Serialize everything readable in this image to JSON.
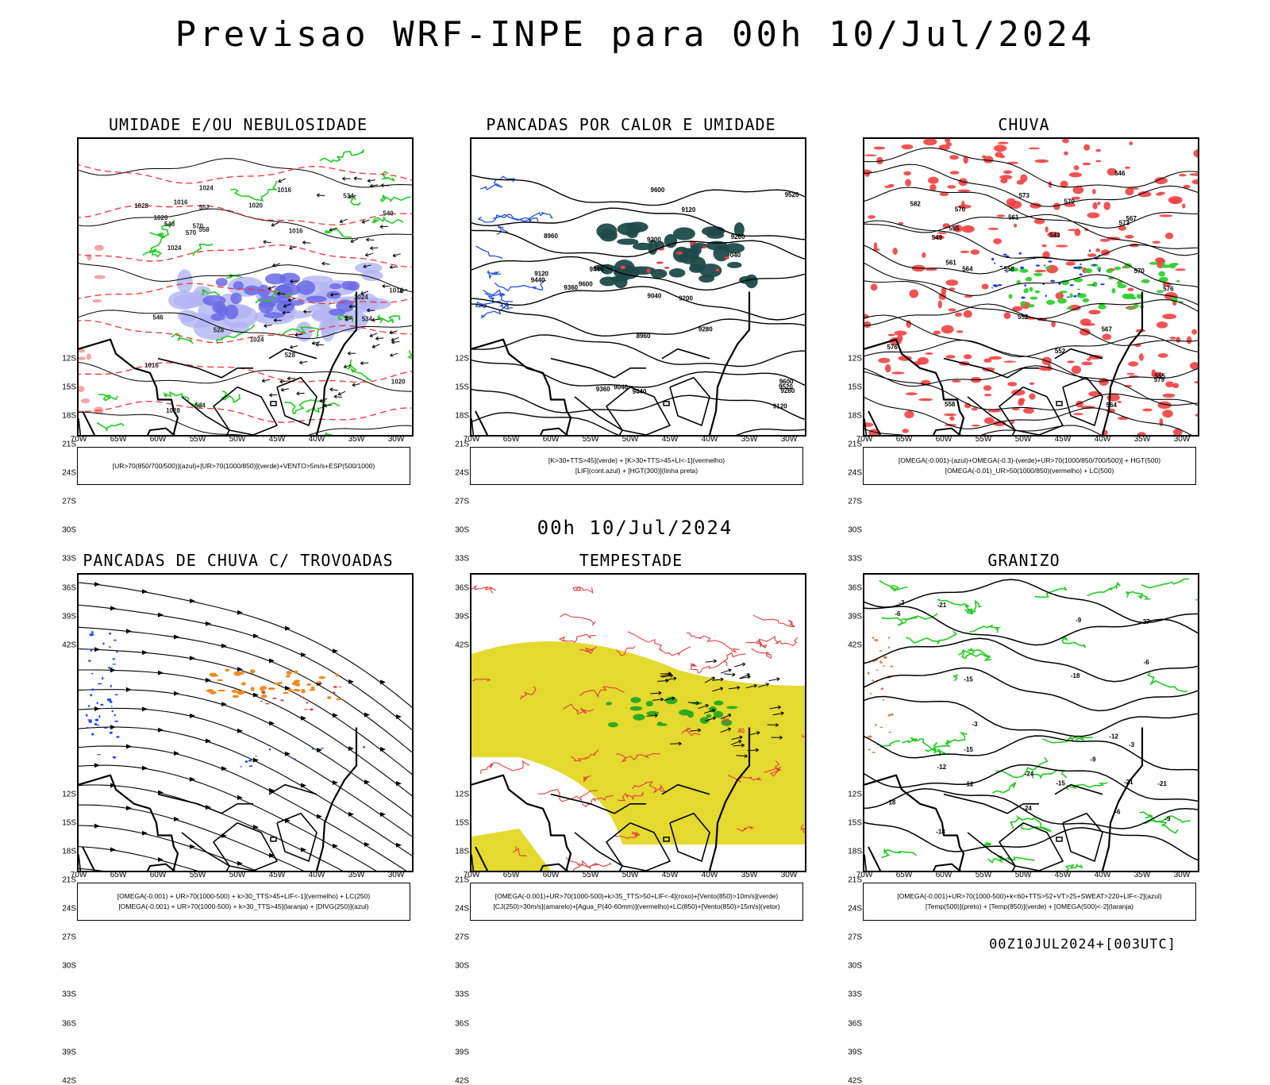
{
  "header": {
    "title": "Previsao WRF-INPE  para 00h 10/Jul/2024",
    "mid_title": "00h 10/Jul/2024",
    "footer": "00Z10JUL2024+[003UTC]"
  },
  "axes": {
    "lat_labels": [
      "12S",
      "15S",
      "18S",
      "21S",
      "24S",
      "27S",
      "30S",
      "33S",
      "36S",
      "39S",
      "42S"
    ],
    "lon_labels": [
      "70W",
      "65W",
      "60W",
      "55W",
      "50W",
      "45W",
      "40W",
      "35W",
      "30W"
    ]
  },
  "panels": [
    {
      "title": "UMIDADE E/OU NEBULOSIDADE",
      "legend": [
        "[UR>70(850/700/500)](azul)+[UR>70(1000/850)](verde)+VENTO>5m/s+ESP(500/1000)"
      ],
      "labels": [
        "1016",
        "1016",
        "1016",
        "1016",
        "1020",
        "1024",
        "1024",
        "1028",
        "1024",
        "1028",
        "1024",
        "1016",
        "1020",
        "570",
        "570",
        "558",
        "546",
        "552",
        "564",
        "540",
        "534",
        "528",
        "540",
        "534",
        "528",
        "1020"
      ]
    },
    {
      "title": "PANCADAS POR CALOR E UMIDADE",
      "legend": [
        "[K>30+TTS>45](verde) + [K>30+TTS>45+LI<-1](vermelho)",
        "[LIF](cont.azul) + [HGT(300)](linha preta)"
      ],
      "labels": [
        "9600",
        "9600",
        "9520",
        "9600",
        "9520",
        "9440",
        "9360",
        "9280",
        "9440",
        "9200",
        "9360",
        "9120",
        "9280",
        "9200",
        "9120",
        "9040",
        "9040",
        "8960",
        "8960",
        "9440",
        "9200",
        "9120",
        "040"
      ]
    },
    {
      "title": "CHUVA",
      "legend": [
        "[OMEGA(-0.001)-(azul)+OMEGA(-0.3)-(verde)+UR>70(1000/850/700/500)] + HGT(500)",
        "[OMEGA(-0.01)_UR>50(1000/850)(vermelho) + LC(500)"
      ],
      "labels": [
        "582",
        "579",
        "576",
        "573",
        "570",
        "567",
        "564",
        "561",
        "558",
        "555",
        "552",
        "549",
        "546",
        "543",
        "564",
        "561",
        "558",
        "555",
        "552",
        "570",
        "567",
        "570",
        "573",
        "576"
      ]
    },
    {
      "title": "PANCADAS DE CHUVA C/ TROVOADAS",
      "legend": [
        "[OMEGA(-0.001) + UR>70(1000-500) + k>30_TTS>45+LIF<-1](vermelho) + LC(250)",
        "[OMEGA(-0.001) + UR>70(1000-500) + k>30_TTS>45](laranja) + [DIVG(250)](azul)"
      ],
      "labels": []
    },
    {
      "title": "TEMPESTADE",
      "legend": [
        "[OMEGA(-0.001)+UR>70(1000-500)+k>35_TTS>50+LIF<-4](roxo)+[Vento(850)>10m/s](verde)",
        "[CJ(250)>30m/s](amarelo)+[Agua_P(40-60mm)](vermelho)+LC(850)+[Vento(850)>15m/s](vetor)"
      ],
      "labels": [
        "40",
        "40"
      ]
    },
    {
      "title": "GRANIZO",
      "legend": [
        "[OMEGA(-0.001)+UR>70(1000-500)+k<60+TTS>52+VT>25+SWEAT>220+LIF<-2](azul)",
        "[Temp(500)](preto) + [Temp(850)](verde) + [OMEGA(500)<-2](laranja)"
      ],
      "labels": [
        "-3",
        "-6",
        "-9",
        "-12",
        "-15",
        "-18",
        "-21",
        "-24",
        "-27",
        "-12",
        "-15",
        "-18",
        "-21",
        "-24",
        "-9",
        "-6",
        "-3",
        "-3",
        "-6",
        "-9",
        "-12",
        "-15",
        "-18",
        "-21"
      ]
    }
  ]
}
